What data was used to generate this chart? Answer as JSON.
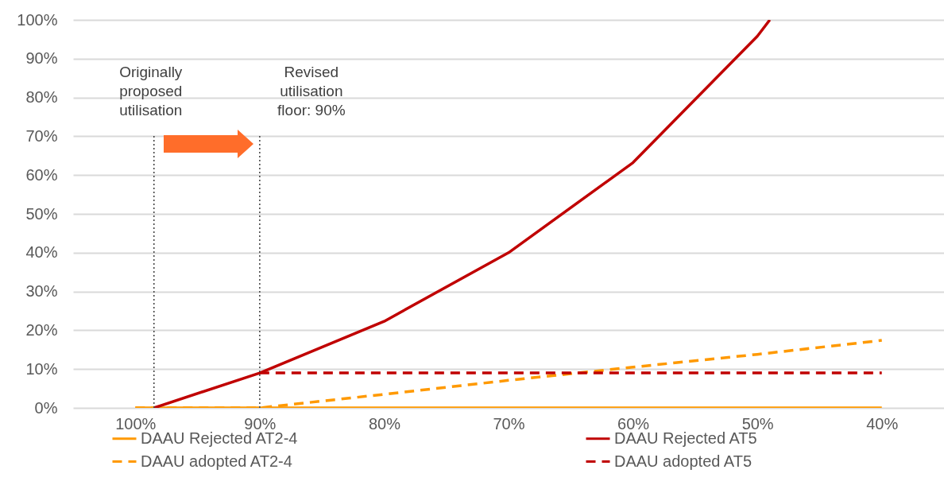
{
  "chart_data": {
    "type": "line",
    "xlim": [
      105,
      35
    ],
    "xticks": [
      {
        "value": 100,
        "label": "100%"
      },
      {
        "value": 90,
        "label": "90%"
      },
      {
        "value": 80,
        "label": "80%"
      },
      {
        "value": 70,
        "label": "70%"
      },
      {
        "value": 60,
        "label": "60%"
      },
      {
        "value": 50,
        "label": "50%"
      },
      {
        "value": 40,
        "label": "40%"
      }
    ],
    "ylim": [
      0,
      100
    ],
    "yticks": [
      {
        "value": 0,
        "label": "0%"
      },
      {
        "value": 10,
        "label": "10%"
      },
      {
        "value": 20,
        "label": "20%"
      },
      {
        "value": 30,
        "label": "30%"
      },
      {
        "value": 40,
        "label": "40%"
      },
      {
        "value": 50,
        "label": "50%"
      },
      {
        "value": 60,
        "label": "60%"
      },
      {
        "value": 70,
        "label": "70%"
      },
      {
        "value": 80,
        "label": "80%"
      },
      {
        "value": 90,
        "label": "90%"
      },
      {
        "value": 100,
        "label": "100%"
      }
    ],
    "grid": "y",
    "legend": "bottom",
    "series": [
      {
        "name": "DAAU Rejected AT2-4",
        "color": "#ff9900",
        "line_style": "solid",
        "x": [
          100,
          40
        ],
        "values": [
          0,
          0
        ]
      },
      {
        "name": "DAAU adopted AT2-4",
        "color": "#ff9900",
        "line_style": "dashed",
        "x": [
          100,
          90,
          80,
          70,
          60,
          50,
          40
        ],
        "values": [
          0,
          0,
          3.5,
          7.1,
          10.5,
          13.8,
          17.4
        ]
      },
      {
        "name": "DAAU Rejected AT5",
        "color": "#c00000",
        "line_style": "solid",
        "x": [
          98.5,
          90,
          80,
          70,
          60,
          50,
          49
        ],
        "values": [
          0,
          9,
          22.3,
          40,
          63.2,
          95.8,
          100
        ]
      },
      {
        "name": "DAAU adopted AT5",
        "color": "#c00000",
        "line_style": "dashed",
        "x": [
          90,
          40
        ],
        "values": [
          9,
          9
        ]
      }
    ],
    "ref_lines": [
      {
        "axis": "x",
        "value": 98.5,
        "label": "Originally\nproposed\nutilisation",
        "color": "#404040",
        "line_style": "dotted"
      },
      {
        "axis": "x",
        "value": 90,
        "label": "Revised\nutilisation\nfloor: 90%",
        "color": "#404040",
        "line_style": "dotted"
      }
    ]
  }
}
